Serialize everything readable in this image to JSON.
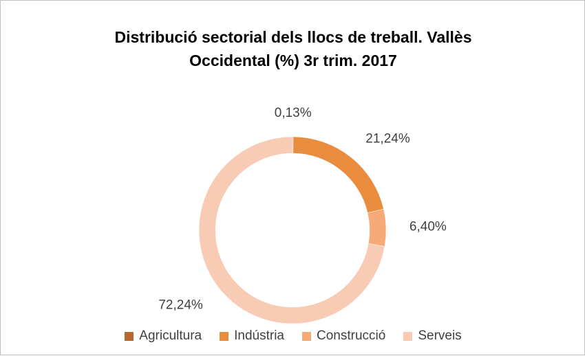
{
  "chart_data": {
    "type": "donut",
    "title": "Distribució sectorial dels llocs de treball.  Vallès Occidental (%) 3r trim. 2017",
    "categories": [
      "Agricultura",
      "Indústria",
      "Construcció",
      "Serveis"
    ],
    "values": [
      0.13,
      21.24,
      6.4,
      72.24
    ],
    "value_labels": [
      "0,13%",
      "21,24%",
      "6,40%",
      "72,24%"
    ],
    "colors": [
      "#b5692f",
      "#e98c3e",
      "#f5aa78",
      "#f8cbb4"
    ],
    "legend": "bottom"
  }
}
